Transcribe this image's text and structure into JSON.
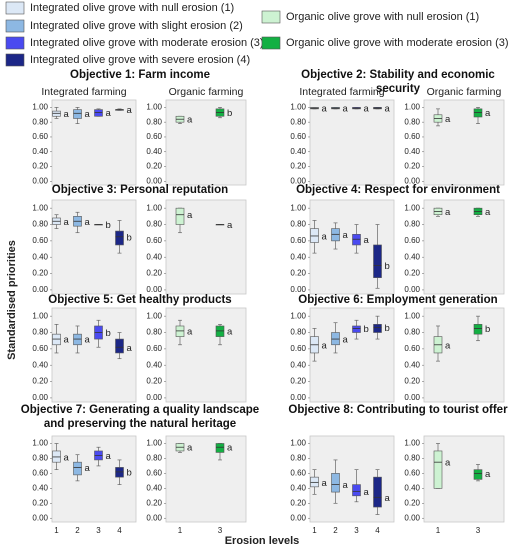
{
  "legend": [
    {
      "name": "Integrated olive grove with null erosion (1)",
      "color": "#dce8f6"
    },
    {
      "name": "Integrated olive grove with slight erosion (2)",
      "color": "#8db8e3"
    },
    {
      "name": "Integrated olive grove with moderate erosion (3)",
      "color": "#4a4af0"
    },
    {
      "name": "Integrated olive grove with severe erosion (4)",
      "color": "#1c2787"
    },
    {
      "name": "Organic olive grove with null erosion (1)",
      "color": "#cdf2d2"
    },
    {
      "name": "Organic olive grove with moderate erosion (3)",
      "color": "#13b043"
    }
  ],
  "y_label": "Standardised priorities",
  "x_label": "Erosion levels",
  "chart_data": [
    {
      "type": "box",
      "title": "Objective 1: Farm income",
      "subtitles": [
        "Integrated farming",
        "Organic farming"
      ],
      "ylim": [
        -0.05,
        1.1
      ],
      "yticks": [
        {
          "value": 0,
          "label": "0.00"
        },
        {
          "value": 0.2,
          "label": "0.20"
        },
        {
          "value": 0.4,
          "label": "0.40"
        },
        {
          "value": 0.6,
          "label": "0.60"
        },
        {
          "value": 0.8,
          "label": "0.80"
        },
        {
          "value": 1,
          "label": "1.00"
        }
      ],
      "panels": [
        {
          "boxes": [
            {
              "min": 0.85,
              "q1": 0.88,
              "median": 0.92,
              "q3": 0.95,
              "max": 1.0,
              "label": "a"
            },
            {
              "min": 0.78,
              "q1": 0.85,
              "median": 0.92,
              "q3": 0.97,
              "max": 1.0,
              "label": "a"
            },
            {
              "min": 0.88,
              "q1": 0.88,
              "median": 0.93,
              "q3": 0.97,
              "max": 0.98,
              "label": "a"
            },
            {
              "min": 0.96,
              "q1": 0.96,
              "median": 0.97,
              "q3": 0.97,
              "max": 0.98,
              "label": "a"
            }
          ]
        },
        {
          "boxes": [
            {
              "min": 0.78,
              "q1": 0.8,
              "median": 0.84,
              "q3": 0.88,
              "max": 0.88,
              "label": "a"
            },
            {
              "min": 0.86,
              "q1": 0.88,
              "median": 0.93,
              "q3": 0.98,
              "max": 1.0,
              "label": "b"
            }
          ]
        }
      ]
    },
    {
      "type": "box",
      "title": "Objective 2: Stability and economic security",
      "subtitles": [
        "Integrated farming",
        "Organic farming"
      ],
      "ylim": [
        -0.05,
        1.1
      ],
      "yticks": [
        {
          "value": 0,
          "label": "0.00"
        },
        {
          "value": 0.2,
          "label": "0.20"
        },
        {
          "value": 0.4,
          "label": "0.40"
        },
        {
          "value": 0.6,
          "label": "0.60"
        },
        {
          "value": 0.8,
          "label": "0.80"
        },
        {
          "value": 1,
          "label": "1.00"
        }
      ],
      "panels": [
        {
          "boxes": [
            {
              "min": 0.98,
              "q1": 0.98,
              "median": 0.99,
              "q3": 1.0,
              "max": 1.0,
              "label": "a"
            },
            {
              "min": 0.98,
              "q1": 0.98,
              "median": 0.99,
              "q3": 1.0,
              "max": 1.0,
              "label": "a"
            },
            {
              "min": 0.98,
              "q1": 0.98,
              "median": 0.99,
              "q3": 1.0,
              "max": 1.0,
              "label": "a"
            },
            {
              "min": 0.98,
              "q1": 0.98,
              "median": 0.99,
              "q3": 1.0,
              "max": 1.0,
              "label": "a"
            }
          ]
        },
        {
          "boxes": [
            {
              "min": 0.75,
              "q1": 0.8,
              "median": 0.85,
              "q3": 0.9,
              "max": 0.98,
              "label": "a"
            },
            {
              "min": 0.78,
              "q1": 0.87,
              "median": 0.93,
              "q3": 0.98,
              "max": 1.0,
              "label": "a"
            }
          ]
        }
      ]
    },
    {
      "type": "box",
      "title": "Objective 3: Personal reputation",
      "ylim": [
        -0.05,
        1.1
      ],
      "yticks": [
        {
          "value": 0,
          "label": "0.00"
        },
        {
          "value": 0.2,
          "label": "0.20"
        },
        {
          "value": 0.4,
          "label": "0.40"
        },
        {
          "value": 0.6,
          "label": "0.60"
        },
        {
          "value": 0.8,
          "label": "0.80"
        },
        {
          "value": 1,
          "label": "1.00"
        }
      ],
      "panels": [
        {
          "boxes": [
            {
              "min": 0.75,
              "q1": 0.8,
              "median": 0.84,
              "q3": 0.88,
              "max": 0.92,
              "label": "a"
            },
            {
              "min": 0.7,
              "q1": 0.78,
              "median": 0.84,
              "q3": 0.9,
              "max": 0.95,
              "label": "a"
            },
            {
              "min": 0.8,
              "q1": 0.8,
              "median": 0.8,
              "q3": 0.8,
              "max": 0.8,
              "label": "b"
            },
            {
              "min": 0.45,
              "q1": 0.55,
              "median": 0.65,
              "q3": 0.72,
              "max": 0.85,
              "label": "b"
            }
          ]
        },
        {
          "boxes": [
            {
              "min": 0.7,
              "q1": 0.8,
              "median": 0.92,
              "q3": 1.0,
              "max": 1.0,
              "label": "a"
            },
            {
              "min": 0.8,
              "q1": 0.8,
              "median": 0.8,
              "q3": 0.8,
              "max": 0.8,
              "label": "a"
            }
          ]
        }
      ]
    },
    {
      "type": "box",
      "title": "Objective 4: Respect for environment",
      "ylim": [
        -0.05,
        1.1
      ],
      "yticks": [
        {
          "value": 0,
          "label": "0.00"
        },
        {
          "value": 0.2,
          "label": "0.20"
        },
        {
          "value": 0.4,
          "label": "0.40"
        },
        {
          "value": 0.6,
          "label": "0.60"
        },
        {
          "value": 0.8,
          "label": "0.80"
        },
        {
          "value": 1,
          "label": "1.00"
        }
      ],
      "panels": [
        {
          "boxes": [
            {
              "min": 0.45,
              "q1": 0.58,
              "median": 0.66,
              "q3": 0.75,
              "max": 0.85,
              "label": "a"
            },
            {
              "min": 0.5,
              "q1": 0.6,
              "median": 0.68,
              "q3": 0.75,
              "max": 0.82,
              "label": "a"
            },
            {
              "min": 0.45,
              "q1": 0.55,
              "median": 0.62,
              "q3": 0.68,
              "max": 0.8,
              "label": "a"
            },
            {
              "min": 0.02,
              "q1": 0.15,
              "median": 0.3,
              "q3": 0.55,
              "max": 0.8,
              "label": "b"
            }
          ]
        },
        {
          "boxes": [
            {
              "min": 0.9,
              "q1": 0.92,
              "median": 0.96,
              "q3": 1.0,
              "max": 1.0,
              "label": "a"
            },
            {
              "min": 0.9,
              "q1": 0.92,
              "median": 0.96,
              "q3": 1.0,
              "max": 1.0,
              "label": "a"
            }
          ]
        }
      ]
    },
    {
      "type": "box",
      "title": "Objective 5: Get healthy products",
      "ylim": [
        -0.05,
        1.1
      ],
      "yticks": [
        {
          "value": 0,
          "label": "0.00"
        },
        {
          "value": 0.2,
          "label": "0.20"
        },
        {
          "value": 0.4,
          "label": "0.40"
        },
        {
          "value": 0.6,
          "label": "0.60"
        },
        {
          "value": 0.8,
          "label": "0.80"
        },
        {
          "value": 1,
          "label": "1.00"
        }
      ],
      "panels": [
        {
          "boxes": [
            {
              "min": 0.55,
              "q1": 0.65,
              "median": 0.72,
              "q3": 0.78,
              "max": 0.9,
              "label": "a"
            },
            {
              "min": 0.55,
              "q1": 0.65,
              "median": 0.72,
              "q3": 0.78,
              "max": 0.88,
              "label": "a"
            },
            {
              "min": 0.62,
              "q1": 0.72,
              "median": 0.8,
              "q3": 0.88,
              "max": 0.95,
              "label": "b"
            },
            {
              "min": 0.48,
              "q1": 0.55,
              "median": 0.62,
              "q3": 0.72,
              "max": 0.8,
              "label": "a"
            }
          ]
        },
        {
          "boxes": [
            {
              "min": 0.65,
              "q1": 0.75,
              "median": 0.82,
              "q3": 0.88,
              "max": 0.95,
              "label": "a"
            },
            {
              "min": 0.65,
              "q1": 0.75,
              "median": 0.82,
              "q3": 0.88,
              "max": 0.9,
              "label": "a"
            }
          ]
        }
      ]
    },
    {
      "type": "box",
      "title": "Objective 6: Employment generation",
      "ylim": [
        -0.05,
        1.1
      ],
      "yticks": [
        {
          "value": 0,
          "label": "0.00"
        },
        {
          "value": 0.2,
          "label": "0.20"
        },
        {
          "value": 0.4,
          "label": "0.40"
        },
        {
          "value": 0.6,
          "label": "0.60"
        },
        {
          "value": 0.8,
          "label": "0.80"
        },
        {
          "value": 1,
          "label": "1.00"
        }
      ],
      "panels": [
        {
          "boxes": [
            {
              "min": 0.45,
              "q1": 0.55,
              "median": 0.65,
              "q3": 0.75,
              "max": 0.85,
              "label": "a"
            },
            {
              "min": 0.55,
              "q1": 0.65,
              "median": 0.72,
              "q3": 0.8,
              "max": 0.92,
              "label": "a"
            },
            {
              "min": 0.72,
              "q1": 0.8,
              "median": 0.85,
              "q3": 0.88,
              "max": 0.95,
              "label": "b"
            },
            {
              "min": 0.72,
              "q1": 0.8,
              "median": 0.86,
              "q3": 0.9,
              "max": 1.0,
              "label": "b"
            }
          ]
        },
        {
          "boxes": [
            {
              "min": 0.45,
              "q1": 0.55,
              "median": 0.65,
              "q3": 0.75,
              "max": 0.88,
              "label": "a"
            },
            {
              "min": 0.7,
              "q1": 0.78,
              "median": 0.85,
              "q3": 0.9,
              "max": 1.0,
              "label": "b"
            }
          ]
        }
      ]
    },
    {
      "type": "box",
      "title": "Objective 7: Generating a quality landscape and preserving the natural heritage",
      "ylim": [
        -0.05,
        1.1
      ],
      "yticks": [
        {
          "value": 0,
          "label": "0.00"
        },
        {
          "value": 0.2,
          "label": "0.20"
        },
        {
          "value": 0.4,
          "label": "0.40"
        },
        {
          "value": 0.6,
          "label": "0.60"
        },
        {
          "value": 0.8,
          "label": "0.80"
        },
        {
          "value": 1,
          "label": "1.00"
        }
      ],
      "panels": [
        {
          "categories": [
            "1",
            "2",
            "3",
            "4"
          ],
          "boxes": [
            {
              "min": 0.65,
              "q1": 0.75,
              "median": 0.82,
              "q3": 0.9,
              "max": 1.0,
              "label": "a"
            },
            {
              "min": 0.5,
              "q1": 0.58,
              "median": 0.68,
              "q3": 0.75,
              "max": 0.85,
              "label": "a"
            },
            {
              "min": 0.7,
              "q1": 0.78,
              "median": 0.84,
              "q3": 0.9,
              "max": 0.95,
              "label": "a"
            },
            {
              "min": 0.45,
              "q1": 0.55,
              "median": 0.62,
              "q3": 0.68,
              "max": 0.78,
              "label": "b"
            }
          ]
        },
        {
          "categories": [
            "1",
            "3"
          ],
          "boxes": [
            {
              "min": 0.88,
              "q1": 0.9,
              "median": 0.95,
              "q3": 1.0,
              "max": 1.0,
              "label": "a"
            },
            {
              "min": 0.78,
              "q1": 0.88,
              "median": 0.95,
              "q3": 1.0,
              "max": 1.0,
              "label": "a"
            }
          ]
        }
      ]
    },
    {
      "type": "box",
      "title": "Objective 8: Contributing to tourist offer",
      "ylim": [
        -0.05,
        1.1
      ],
      "yticks": [
        {
          "value": 0,
          "label": "0.00"
        },
        {
          "value": 0.2,
          "label": "0.20"
        },
        {
          "value": 0.4,
          "label": "0.40"
        },
        {
          "value": 0.6,
          "label": "0.60"
        },
        {
          "value": 0.8,
          "label": "0.80"
        },
        {
          "value": 1,
          "label": "1.00"
        }
      ],
      "panels": [
        {
          "categories": [
            "1",
            "2",
            "3",
            "4"
          ],
          "boxes": [
            {
              "min": 0.32,
              "q1": 0.42,
              "median": 0.48,
              "q3": 0.55,
              "max": 0.65,
              "label": "a"
            },
            {
              "min": 0.2,
              "q1": 0.35,
              "median": 0.45,
              "q3": 0.6,
              "max": 0.78,
              "label": "a"
            },
            {
              "min": 0.22,
              "q1": 0.3,
              "median": 0.36,
              "q3": 0.45,
              "max": 0.65,
              "label": "a"
            },
            {
              "min": 0.05,
              "q1": 0.15,
              "median": 0.28,
              "q3": 0.55,
              "max": 0.65,
              "label": "a"
            }
          ]
        },
        {
          "categories": [
            "1",
            "3"
          ],
          "boxes": [
            {
              "min": 0.4,
              "q1": 0.4,
              "median": 0.75,
              "q3": 0.9,
              "max": 1.0,
              "label": "a"
            },
            {
              "min": 0.5,
              "q1": 0.52,
              "median": 0.6,
              "q3": 0.65,
              "max": 0.72,
              "label": "a"
            }
          ]
        }
      ]
    }
  ]
}
